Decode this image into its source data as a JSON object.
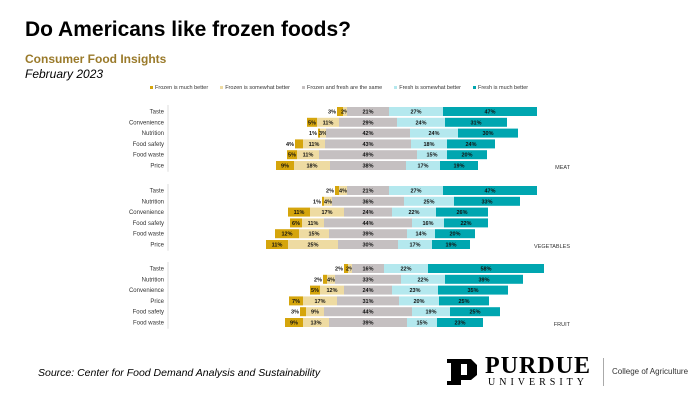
{
  "title": "Do Americans like frozen foods?",
  "subtitle": "Consumer Food Insights",
  "date": "February 2023",
  "source": "Source:  Center for Food Demand Analysis and Sustainability",
  "logo": {
    "name": "PURDUE",
    "sub": "UNIVERSITY",
    "college": "College of Agriculture"
  },
  "chart_data": {
    "type": "bar",
    "subtype": "diverging-stacked-horizontal",
    "legend_position": "top",
    "series": [
      {
        "name": "Frozen is much better",
        "color": "#d5a50c"
      },
      {
        "name": "Frozen is somewhat better",
        "color": "#eedba2"
      },
      {
        "name": "Frozen and fresh are the same",
        "color": "#c5c0c1"
      },
      {
        "name": "Fresh is somewhat better",
        "color": "#b4e8ee"
      },
      {
        "name": "Fresh is much better",
        "color": "#00a6b0"
      }
    ],
    "panels": [
      {
        "label": "MEAT",
        "rows": [
          {
            "category": "Taste",
            "values": [
              3,
              2,
              21,
              27,
              47
            ]
          },
          {
            "category": "Convenience",
            "values": [
              5,
              11,
              29,
              24,
              31
            ]
          },
          {
            "category": "Nutrition",
            "values": [
              1,
              3,
              42,
              24,
              30
            ]
          },
          {
            "category": "Food safety",
            "values": [
              4,
              11,
              43,
              18,
              24
            ]
          },
          {
            "category": "Food waste",
            "values": [
              5,
              11,
              49,
              15,
              20
            ]
          },
          {
            "category": "Price",
            "values": [
              9,
              18,
              38,
              17,
              19
            ]
          }
        ]
      },
      {
        "label": "VEGETABLES",
        "rows": [
          {
            "category": "Taste",
            "values": [
              2,
              4,
              21,
              27,
              47
            ]
          },
          {
            "category": "Nutrition",
            "values": [
              1,
              4,
              36,
              25,
              33
            ]
          },
          {
            "category": "Convenience",
            "values": [
              11,
              17,
              24,
              22,
              26
            ]
          },
          {
            "category": "Food safety",
            "values": [
              6,
              11,
              44,
              16,
              22
            ]
          },
          {
            "category": "Food waste",
            "values": [
              12,
              15,
              39,
              14,
              20
            ]
          },
          {
            "category": "Price",
            "values": [
              11,
              25,
              30,
              17,
              19
            ]
          }
        ]
      },
      {
        "label": "FRUIT",
        "rows": [
          {
            "category": "Taste",
            "values": [
              2,
              2,
              16,
              22,
              58
            ]
          },
          {
            "category": "Nutrition",
            "values": [
              2,
              4,
              33,
              22,
              39
            ]
          },
          {
            "category": "Convenience",
            "values": [
              5,
              12,
              24,
              23,
              35
            ]
          },
          {
            "category": "Price",
            "values": [
              7,
              17,
              31,
              20,
              25
            ]
          },
          {
            "category": "Food safety",
            "values": [
              3,
              9,
              44,
              19,
              25
            ]
          },
          {
            "category": "Food waste",
            "values": [
              9,
              13,
              39,
              15,
              23
            ]
          }
        ]
      }
    ]
  }
}
